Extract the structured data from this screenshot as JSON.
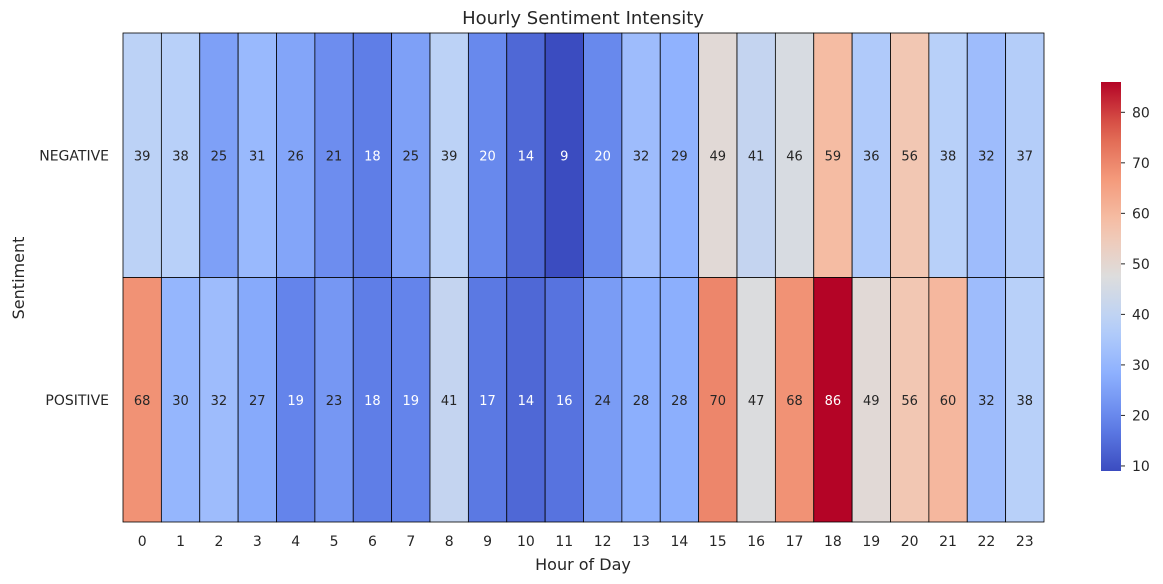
{
  "chart_data": {
    "type": "heatmap",
    "title": "Hourly Sentiment Intensity",
    "xlabel": "Hour of Day",
    "ylabel": "Sentiment",
    "x": [
      "0",
      "1",
      "2",
      "3",
      "4",
      "5",
      "6",
      "7",
      "8",
      "9",
      "10",
      "11",
      "12",
      "13",
      "14",
      "15",
      "16",
      "17",
      "18",
      "19",
      "20",
      "21",
      "22",
      "23"
    ],
    "rows": [
      {
        "name": "NEGATIVE",
        "values": [
          39,
          38,
          25,
          31,
          26,
          21,
          18,
          25,
          39,
          20,
          14,
          9,
          20,
          32,
          29,
          49,
          41,
          46,
          59,
          36,
          56,
          38,
          32,
          37
        ]
      },
      {
        "name": "POSITIVE",
        "values": [
          68,
          30,
          32,
          27,
          19,
          23,
          18,
          19,
          41,
          17,
          14,
          16,
          24,
          28,
          28,
          70,
          47,
          68,
          86,
          49,
          56,
          60,
          32,
          38
        ]
      }
    ],
    "colormap": "coolwarm",
    "vmin": 9,
    "vmax": 86,
    "colorbar_ticks": [
      "10",
      "20",
      "30",
      "40",
      "50",
      "60",
      "70",
      "80"
    ],
    "colorbar_tick_values": [
      10,
      20,
      30,
      40,
      50,
      60,
      70,
      80
    ]
  }
}
